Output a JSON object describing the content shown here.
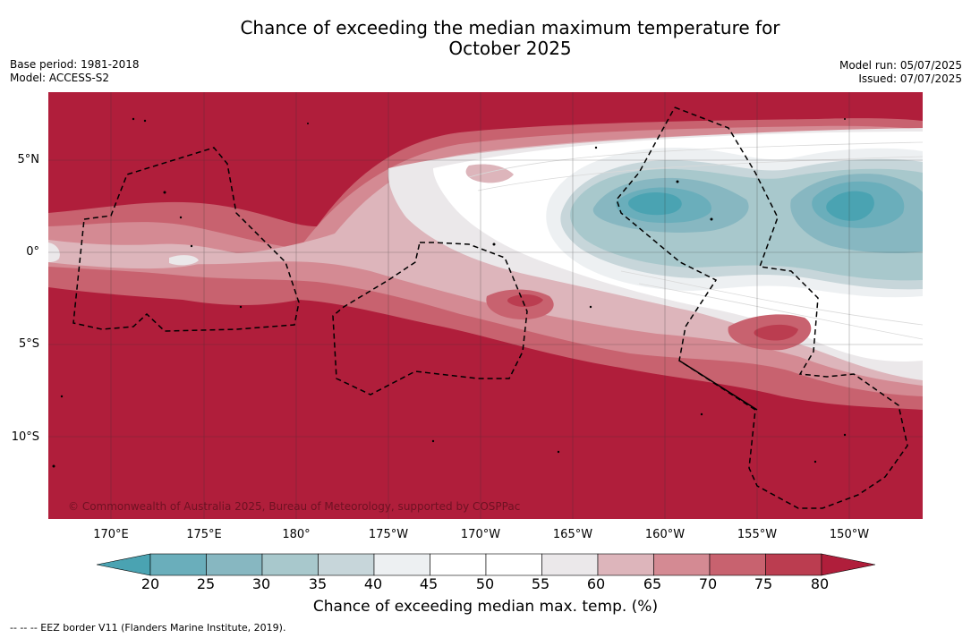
{
  "title_line1": "Chance of exceeding the median maximum temperature for",
  "title_line2": "October 2025",
  "meta_left": {
    "base_period": "Base period: 1981-2018",
    "model": "Model: ACCESS-S2"
  },
  "meta_right": {
    "model_run": "Model run: 05/07/2025",
    "issued": "Issued: 07/07/2025"
  },
  "lat_labels": [
    "5°N",
    "0°",
    "5°S",
    "10°S"
  ],
  "lon_labels": [
    "170°E",
    "175°E",
    "180°",
    "175°W",
    "170°W",
    "165°W",
    "160°W",
    "155°W",
    "150°W"
  ],
  "copyright": "© Commonwealth of Australia 2025, Bureau of Meteorology, supported by COSPPac",
  "colorbar": {
    "ticks": [
      "20",
      "25",
      "30",
      "35",
      "40",
      "45",
      "50",
      "55",
      "60",
      "65",
      "70",
      "75",
      "80"
    ],
    "colors": [
      "#4aa3b2",
      "#6aaebb",
      "#87b7c1",
      "#a8c8cc",
      "#c7d6da",
      "#edf0f2",
      "#ffffff",
      "#ffffff",
      "#ebe8ea",
      "#ddb5bb",
      "#d48a93",
      "#c8626f",
      "#bb3d50",
      "#b01e3b"
    ],
    "label": "Chance of exceeding median max. temp. (%)"
  },
  "footnote": "--  --  -- EEZ border V11 (Flanders Marine Institute, 2019)."
}
